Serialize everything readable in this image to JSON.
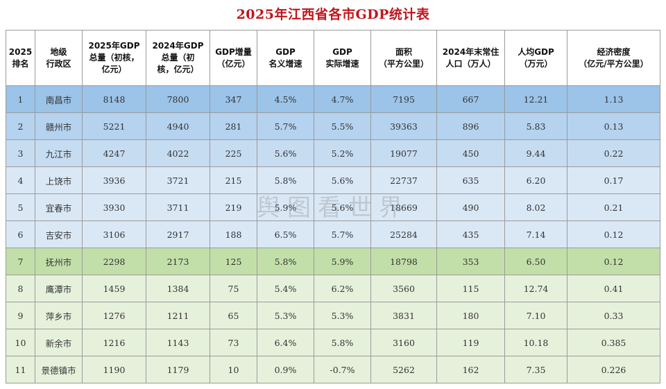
{
  "title": "2025年江西省各市GDP统计表",
  "watermark": "舆图看世界",
  "headers": [
    [
      "2025",
      "排名"
    ],
    [
      "地级",
      "行政区"
    ],
    [
      "2025年GDP",
      "总量（初核，",
      "亿元）"
    ],
    [
      "2024年GDP",
      "总量（初",
      "核，亿元）"
    ],
    [
      "GDP增量",
      "（亿元）"
    ],
    [
      "GDP",
      "名义增速"
    ],
    [
      "GDP",
      "实际增速"
    ],
    [
      "面积",
      "（平方公里）"
    ],
    [
      "2024年末常住",
      "人口（万人）"
    ],
    [
      "人均GDP",
      "（万元）"
    ],
    [
      "经济密度",
      "（亿元/平方公里）"
    ]
  ],
  "rows": [
    [
      "1",
      "南昌市",
      "8148",
      "7800",
      "347",
      "4.5%",
      "4.7%",
      "7195",
      "667",
      "12.21",
      "1.13"
    ],
    [
      "2",
      "赣州市",
      "5221",
      "4940",
      "281",
      "5.7%",
      "5.5%",
      "39363",
      "896",
      "5.83",
      "0.13"
    ],
    [
      "3",
      "九江市",
      "4247",
      "4022",
      "225",
      "5.6%",
      "5.2%",
      "19077",
      "450",
      "9.44",
      "0.22"
    ],
    [
      "4",
      "上饶市",
      "3936",
      "3721",
      "215",
      "5.8%",
      "5.6%",
      "22737",
      "635",
      "6.20",
      "0.17"
    ],
    [
      "5",
      "宜春市",
      "3930",
      "3711",
      "219",
      "5.9%",
      "5.6%",
      "18669",
      "490",
      "8.02",
      "0.21"
    ],
    [
      "6",
      "吉安市",
      "3106",
      "2917",
      "188",
      "6.5%",
      "5.7%",
      "25284",
      "435",
      "7.14",
      "0.12"
    ],
    [
      "7",
      "抚州市",
      "2298",
      "2173",
      "125",
      "5.8%",
      "5.9%",
      "18798",
      "353",
      "6.50",
      "0.12"
    ],
    [
      "8",
      "鹰潭市",
      "1459",
      "1384",
      "75",
      "5.4%",
      "6.2%",
      "3560",
      "115",
      "12.74",
      "0.41"
    ],
    [
      "9",
      "萍乡市",
      "1276",
      "1211",
      "65",
      "5.3%",
      "5.3%",
      "3831",
      "180",
      "7.10",
      "0.33"
    ],
    [
      "10",
      "新余市",
      "1216",
      "1143",
      "73",
      "6.4%",
      "5.8%",
      "3160",
      "119",
      "10.18",
      "0.385"
    ],
    [
      "11",
      "景德镇市",
      "1190",
      "1179",
      "10",
      "0.9%",
      "-0.7%",
      "5262",
      "162",
      "7.35",
      "0.226"
    ]
  ],
  "colors": {
    "title": "#c0161c",
    "row_1": "#9cc3e8",
    "row_2": "#b5d2ee",
    "row_3": "#c6dcf1",
    "rows_4_6": "#dae8f6",
    "row_7": "#c3dfa9",
    "rows_8_11": "#e6f1dc"
  }
}
